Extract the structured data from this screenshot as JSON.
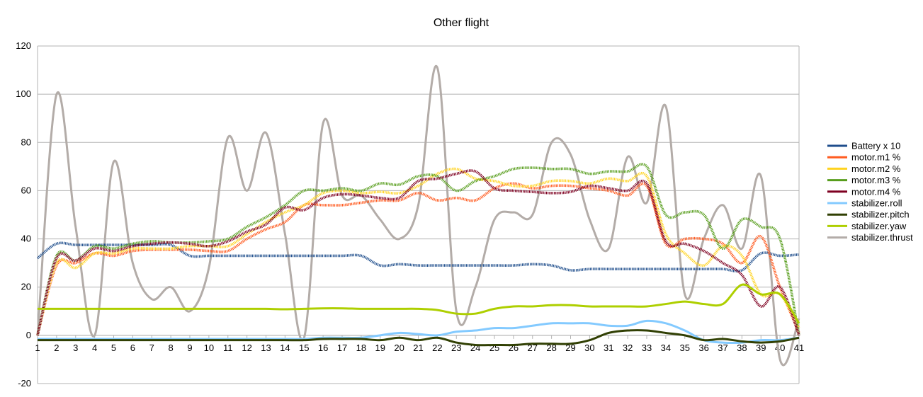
{
  "chart_data": {
    "type": "line",
    "title": "Other flight",
    "xlabel": "",
    "ylabel": "",
    "ylim": [
      -20,
      120
    ],
    "yticks": [
      -20,
      0,
      20,
      40,
      60,
      80,
      100,
      120
    ],
    "grid": true,
    "legend_position": "right",
    "categories": [
      "1",
      "2",
      "3",
      "4",
      "5",
      "6",
      "7",
      "8",
      "9",
      "10",
      "11",
      "12",
      "13",
      "14",
      "15",
      "16",
      "17",
      "18",
      "19",
      "20",
      "21",
      "22",
      "23",
      "24",
      "25",
      "26",
      "27",
      "28",
      "29",
      "30",
      "31",
      "32",
      "33",
      "34",
      "35",
      "36",
      "37",
      "38",
      "39",
      "40",
      "41"
    ],
    "series": [
      {
        "name": "Battery x 10",
        "color": "#1f4e8c",
        "dotted": true,
        "values": [
          32,
          38,
          37.5,
          37.5,
          37.5,
          37.5,
          37.5,
          37.5,
          33,
          33,
          33,
          33,
          33,
          33,
          33,
          33,
          33,
          33,
          29,
          29.5,
          29,
          29,
          29,
          29,
          29,
          29,
          29.5,
          29,
          27,
          27.5,
          27.5,
          27.5,
          27.5,
          27.5,
          27.5,
          27.5,
          27.5,
          27,
          34,
          33,
          33.5
        ]
      },
      {
        "name": "motor.m1 %",
        "color": "#ff5a1f",
        "dotted": true,
        "values": [
          0,
          29,
          30,
          34,
          33,
          35,
          35.5,
          35.5,
          35.5,
          35,
          35,
          40,
          44,
          47,
          54,
          54,
          54,
          55,
          56,
          56,
          59,
          56,
          57,
          56,
          61,
          63,
          61,
          62,
          62,
          61,
          60,
          58,
          62,
          38,
          40,
          40,
          38,
          30,
          41,
          20,
          1
        ]
      },
      {
        "name": "motor.m2 %",
        "color": "#ffd320",
        "dotted": true,
        "values": [
          0,
          30,
          28,
          34,
          34,
          36,
          36,
          36,
          37,
          37,
          37,
          42,
          47,
          51,
          54,
          59,
          60,
          59,
          59.5,
          59,
          62,
          67,
          69,
          65,
          64,
          62,
          62,
          64,
          64,
          63,
          65,
          64,
          66,
          42,
          34,
          29,
          37,
          33,
          17,
          17,
          3
        ]
      },
      {
        "name": "motor.m3 %",
        "color": "#579d1c",
        "dotted": true,
        "values": [
          0,
          33,
          31,
          37,
          36,
          38,
          39,
          38.5,
          38.5,
          39,
          40,
          45,
          49,
          54,
          60,
          60,
          61,
          60,
          63,
          62.5,
          66,
          66,
          60,
          64,
          66,
          69,
          69.5,
          69,
          69,
          67,
          68,
          68,
          70,
          50,
          51,
          50,
          36,
          48,
          45,
          40,
          0
        ]
      },
      {
        "name": "motor.m4 %",
        "color": "#7e0021",
        "dotted": true,
        "values": [
          0,
          32,
          31,
          36,
          35,
          37,
          38,
          38.5,
          38,
          37,
          39,
          43,
          46,
          53,
          52,
          57,
          58.5,
          58,
          57,
          57,
          64,
          65,
          67,
          68,
          61,
          60,
          59.5,
          59,
          59.5,
          62,
          61,
          60,
          63,
          39,
          38,
          35,
          30,
          25,
          12,
          20,
          0
        ]
      },
      {
        "name": "stabilizer.roll",
        "color": "#83caff",
        "dotted": false,
        "values": [
          -1.5,
          -1.5,
          -1.5,
          -1.5,
          -1.5,
          -1.5,
          -1.5,
          -1.5,
          -1.5,
          -1.5,
          -1.5,
          -1.5,
          -1.5,
          -1.5,
          -1.5,
          -1,
          -1,
          -1,
          0,
          1,
          0.5,
          0,
          1.5,
          2,
          3,
          3,
          4,
          5,
          5,
          5,
          4,
          4,
          6,
          5,
          2,
          -2,
          -3,
          -3,
          -2,
          -2,
          -1
        ]
      },
      {
        "name": "stabilizer.pitch",
        "color": "#314004",
        "dotted": false,
        "values": [
          -2,
          -2,
          -2,
          -2,
          -2,
          -2,
          -2,
          -2,
          -2,
          -2,
          -2,
          -2,
          -2,
          -2,
          -2,
          -1.5,
          -1.5,
          -1.5,
          -2,
          -1,
          -2,
          -1,
          -3,
          -4,
          -4,
          -4,
          -3.5,
          -3.5,
          -3.5,
          -2,
          1,
          2,
          2,
          1,
          0,
          -2,
          -1.5,
          -2.5,
          -3,
          -2.5,
          -1
        ]
      },
      {
        "name": "stabilizer.yaw",
        "color": "#aecf00",
        "dotted": false,
        "values": [
          11,
          11,
          11,
          11,
          11,
          11,
          11,
          11,
          11,
          11,
          11,
          11,
          11,
          10.8,
          11,
          11.2,
          11.2,
          11,
          11,
          11,
          11,
          10.5,
          9,
          9,
          11,
          12,
          12,
          12.5,
          12.5,
          12,
          12,
          12,
          12,
          13,
          14,
          13,
          13,
          21,
          17,
          17,
          5
        ]
      },
      {
        "name": "stabilizer.thrust",
        "color": "#b3aca8",
        "dotted": false,
        "values": [
          0,
          100,
          45,
          0,
          72,
          30,
          15,
          20,
          10,
          28,
          82,
          60,
          84,
          42,
          -1,
          88,
          58,
          58,
          48,
          40,
          54,
          111,
          10,
          20,
          48,
          51,
          50,
          80,
          75,
          48,
          36,
          74,
          55,
          95,
          17,
          40,
          54,
          36,
          66,
          -10,
          7
        ]
      }
    ]
  }
}
